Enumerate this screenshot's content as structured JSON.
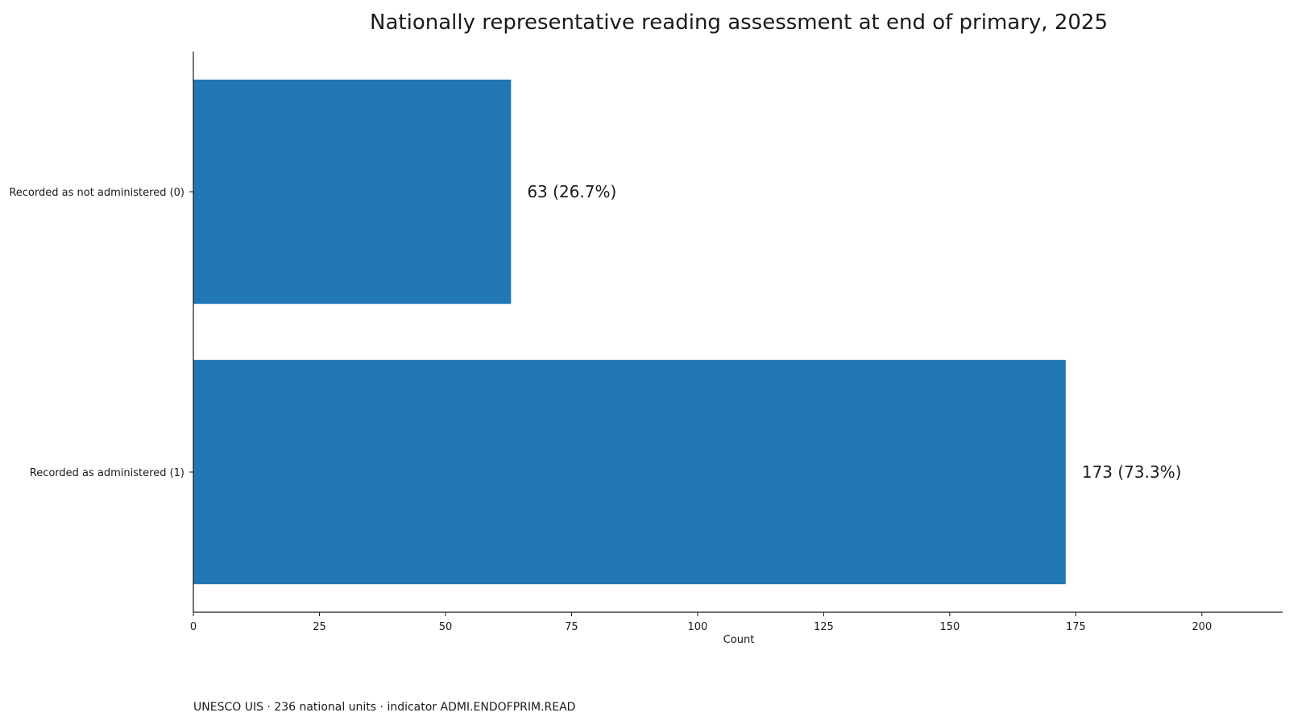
{
  "chart_data": {
    "type": "bar",
    "orientation": "horizontal",
    "title": "Nationally representative reading assessment at end of primary, 2025",
    "categories": [
      "Recorded as not administered (0)",
      "Recorded as administered (1)"
    ],
    "values": [
      63,
      173
    ],
    "data_labels": [
      "63  (26.7%)",
      "173  (73.3%)"
    ],
    "xlabel": "Count",
    "ylabel": "",
    "xlim": [
      0,
      216
    ],
    "xticks": [
      0,
      25,
      50,
      75,
      100,
      125,
      150,
      175,
      200
    ],
    "grid": false,
    "bar_color": "#2077b4"
  },
  "footnote": "UNESCO UIS · 236 national units · indicator ADMI.ENDOFPRIM.READ"
}
